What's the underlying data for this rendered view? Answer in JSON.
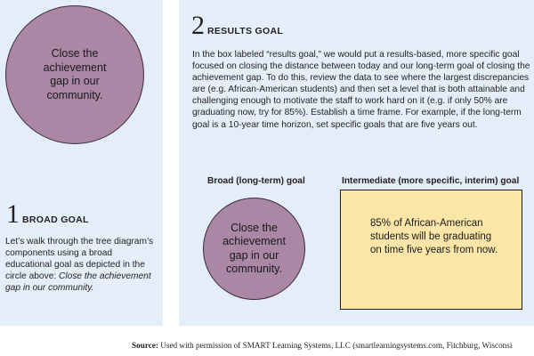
{
  "broad": {
    "circle_text": "Close the achievement gap in our community.",
    "number": "1",
    "title": "BROAD GOAL",
    "text": "Let’s walk through the tree diagram’s components using a broad educational goal as depicted in the circle above:",
    "text_italic": "Close the achievement gap in our community."
  },
  "results": {
    "number": "2",
    "title": "RESULTS GOAL",
    "text": "In the box labeled “results goal,” we would put a results-based, more specific goal focused on closing the distance between today and our long-term goal of closing the achievement gap. To do this, review the data to see where the largest discrepancies are (e.g. African-American students) and then set a level that is both attainable and challenging enough to motivate the staff to work hard on it (e.g. if only 50% are graduating now, try for 85%). Establish a time frame. For example, if the long-term goal is a 10-year time horizon, set specific goals that are five years out.",
    "broad_label": "Broad (long-term) goal",
    "broad_circle_text": "Close the achievement gap in our community.",
    "intermediate_label": "Intermediate (more specific, interim) goal",
    "intermediate_text": "85% of African-American students will be graduating on time five years from now."
  },
  "source": {
    "label": "Source:",
    "text": "Used with permission of SMART Learning Systems, LLC (smartlearningsystems.com, Fitchburg, Wisconsi"
  },
  "colors": {
    "panel": "#e3eef8",
    "circle": "#a987a5",
    "box": "#fbe6a7"
  }
}
